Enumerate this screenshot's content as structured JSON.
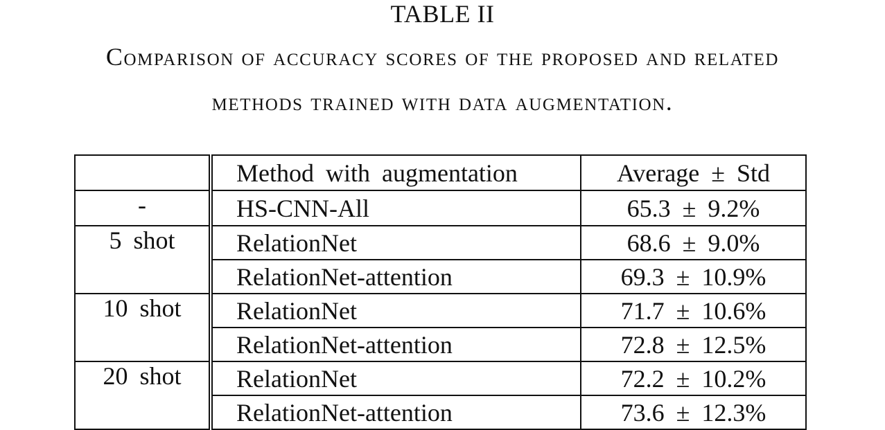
{
  "table_label": "TABLE II",
  "caption": {
    "line1": "Comparison of accuracy scores of the proposed and related",
    "line2": "methods trained with data augmentation."
  },
  "table": {
    "header": {
      "group": "",
      "method": "Method with augmentation",
      "score": "Average ± Std"
    },
    "groups": [
      {
        "label": "-",
        "rows": [
          {
            "method": "HS-CNN-All",
            "score": "65.3 ± 9.2%"
          }
        ]
      },
      {
        "label": "5 shot",
        "rows": [
          {
            "method": "RelationNet",
            "score": "68.6 ± 9.0%"
          },
          {
            "method": "RelationNet-attention",
            "score": "69.3 ± 10.9%"
          }
        ]
      },
      {
        "label": "10 shot",
        "rows": [
          {
            "method": "RelationNet",
            "score": "71.7 ± 10.6%"
          },
          {
            "method": "RelationNet-attention",
            "score": "72.8 ± 12.5%"
          }
        ]
      },
      {
        "label": "20 shot",
        "rows": [
          {
            "method": "RelationNet",
            "score": "72.2 ± 10.2%"
          },
          {
            "method": "RelationNet-attention",
            "score": "73.6 ± 12.3%"
          }
        ]
      }
    ]
  }
}
